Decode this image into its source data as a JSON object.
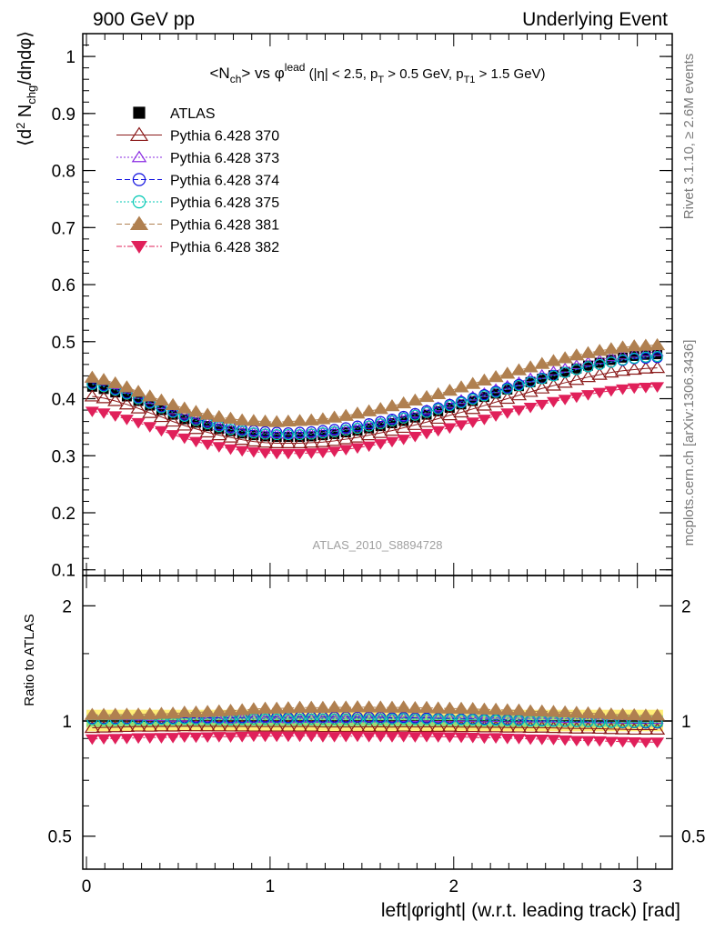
{
  "header": {
    "left": "900 GeV pp",
    "right": "Underlying Event"
  },
  "side_labels": {
    "rivet": "Rivet 3.1.10, ≥ 2.6M events",
    "mcplots": "mcplots.cern.ch [arXiv:1306.3436]"
  },
  "watermark": "ATLAS_2010_S8894728",
  "colors": {
    "data": "#000000",
    "s370": "#8b1a1a",
    "s373": "#8a2be2",
    "s374": "#1010e0",
    "s375": "#00c8b4",
    "s381": "#b08050",
    "s382": "#e0205a",
    "band_yellow": "#ffee77",
    "band_green": "#99dd77"
  },
  "chart_data": [
    {
      "type": "scatter",
      "title": "<N_ch> vs φ^lead (|η| < 2.5, p_T > 0.5 GeV, p_T1 > 1.5 GeV)",
      "ylabel": "⟨d² N_chg/dηdφ⟩",
      "xlim": [
        -0.02,
        3.19
      ],
      "ylim": [
        0.09,
        1.04
      ],
      "grid": false,
      "legend_position": "top-left",
      "x_ticks": [
        0,
        1,
        2,
        3
      ],
      "y_ticks": [
        0.1,
        0.2,
        0.3,
        0.4,
        0.5,
        0.6,
        0.7,
        0.8,
        0.9,
        1
      ],
      "x_start": 0.0314,
      "x_step": 0.0628,
      "n_points": 50,
      "series": [
        {
          "name": "ATLAS",
          "marker": "filled-square",
          "values": [
            0.421,
            0.417,
            0.411,
            0.404,
            0.396,
            0.388,
            0.38,
            0.372,
            0.364,
            0.358,
            0.352,
            0.347,
            0.343,
            0.339,
            0.336,
            0.334,
            0.333,
            0.333,
            0.333,
            0.334,
            0.336,
            0.338,
            0.341,
            0.344,
            0.348,
            0.352,
            0.357,
            0.361,
            0.367,
            0.372,
            0.378,
            0.384,
            0.39,
            0.396,
            0.403,
            0.409,
            0.416,
            0.422,
            0.429,
            0.435,
            0.441,
            0.447,
            0.453,
            0.458,
            0.463,
            0.468,
            0.472,
            0.475,
            0.477,
            0.478
          ]
        },
        {
          "name": "Pythia 6.428 370",
          "marker": "open-triangle-up",
          "line": "solid",
          "values": [
            0.404,
            0.401,
            0.396,
            0.39,
            0.383,
            0.375,
            0.368,
            0.36,
            0.353,
            0.347,
            0.341,
            0.336,
            0.332,
            0.328,
            0.325,
            0.323,
            0.322,
            0.322,
            0.322,
            0.323,
            0.324,
            0.326,
            0.329,
            0.332,
            0.336,
            0.34,
            0.344,
            0.349,
            0.354,
            0.359,
            0.365,
            0.371,
            0.376,
            0.382,
            0.388,
            0.394,
            0.4,
            0.406,
            0.412,
            0.418,
            0.423,
            0.428,
            0.433,
            0.438,
            0.442,
            0.446,
            0.449,
            0.451,
            0.453,
            0.454
          ]
        },
        {
          "name": "Pythia 6.428 373",
          "marker": "open-triangle-up-small",
          "line": "dotted",
          "values": [
            0.435,
            0.431,
            0.424,
            0.416,
            0.407,
            0.398,
            0.389,
            0.38,
            0.372,
            0.364,
            0.358,
            0.352,
            0.347,
            0.344,
            0.341,
            0.339,
            0.338,
            0.337,
            0.338,
            0.339,
            0.341,
            0.343,
            0.346,
            0.35,
            0.354,
            0.358,
            0.363,
            0.368,
            0.374,
            0.38,
            0.385,
            0.391,
            0.398,
            0.404,
            0.41,
            0.417,
            0.423,
            0.429,
            0.436,
            0.442,
            0.448,
            0.453,
            0.459,
            0.464,
            0.468,
            0.473,
            0.476,
            0.479,
            0.481,
            0.482
          ]
        },
        {
          "name": "Pythia 6.428 374",
          "marker": "open-circle",
          "line": "dashed",
          "values": [
            0.427,
            0.423,
            0.417,
            0.41,
            0.402,
            0.394,
            0.386,
            0.378,
            0.371,
            0.365,
            0.359,
            0.354,
            0.35,
            0.346,
            0.344,
            0.342,
            0.341,
            0.34,
            0.341,
            0.342,
            0.344,
            0.346,
            0.349,
            0.352,
            0.356,
            0.36,
            0.364,
            0.369,
            0.374,
            0.379,
            0.384,
            0.39,
            0.395,
            0.401,
            0.407,
            0.413,
            0.419,
            0.425,
            0.43,
            0.436,
            0.441,
            0.446,
            0.451,
            0.456,
            0.46,
            0.464,
            0.467,
            0.47,
            0.471,
            0.472
          ]
        },
        {
          "name": "Pythia 6.428 375",
          "marker": "open-circle",
          "line": "dotted",
          "values": [
            0.425,
            0.421,
            0.415,
            0.408,
            0.4,
            0.392,
            0.384,
            0.376,
            0.369,
            0.362,
            0.356,
            0.351,
            0.346,
            0.343,
            0.34,
            0.338,
            0.337,
            0.337,
            0.337,
            0.338,
            0.34,
            0.342,
            0.345,
            0.348,
            0.352,
            0.356,
            0.361,
            0.366,
            0.371,
            0.376,
            0.382,
            0.388,
            0.393,
            0.399,
            0.405,
            0.411,
            0.417,
            0.423,
            0.429,
            0.435,
            0.44,
            0.446,
            0.451,
            0.456,
            0.46,
            0.464,
            0.468,
            0.471,
            0.473,
            0.474
          ]
        },
        {
          "name": "Pythia 6.428 381",
          "marker": "filled-triangle-up",
          "line": "dashed",
          "values": [
            0.437,
            0.433,
            0.427,
            0.42,
            0.412,
            0.404,
            0.397,
            0.389,
            0.383,
            0.377,
            0.372,
            0.368,
            0.365,
            0.362,
            0.361,
            0.36,
            0.359,
            0.36,
            0.361,
            0.362,
            0.364,
            0.367,
            0.37,
            0.374,
            0.378,
            0.382,
            0.387,
            0.392,
            0.397,
            0.403,
            0.408,
            0.414,
            0.42,
            0.426,
            0.432,
            0.438,
            0.444,
            0.45,
            0.455,
            0.461,
            0.466,
            0.471,
            0.476,
            0.48,
            0.484,
            0.487,
            0.49,
            0.492,
            0.493,
            0.494
          ]
        },
        {
          "name": "Pythia 6.428 382",
          "marker": "filled-triangle-down",
          "line": "dashdot",
          "values": [
            0.378,
            0.375,
            0.37,
            0.364,
            0.358,
            0.351,
            0.344,
            0.337,
            0.331,
            0.325,
            0.32,
            0.316,
            0.312,
            0.309,
            0.307,
            0.305,
            0.304,
            0.304,
            0.304,
            0.305,
            0.306,
            0.308,
            0.311,
            0.314,
            0.317,
            0.321,
            0.325,
            0.329,
            0.334,
            0.339,
            0.344,
            0.349,
            0.354,
            0.359,
            0.364,
            0.37,
            0.375,
            0.38,
            0.385,
            0.39,
            0.395,
            0.399,
            0.403,
            0.407,
            0.411,
            0.414,
            0.417,
            0.419,
            0.42,
            0.421
          ]
        }
      ]
    },
    {
      "type": "scatter",
      "ylabel": "Ratio to ATLAS",
      "xlabel": "left|φright| (w.r.t. leading track) [rad]",
      "xlim": [
        -0.02,
        3.19
      ],
      "ylim": [
        0.41,
        2.4
      ],
      "log_y": true,
      "y_ticks": [
        0.5,
        1,
        2
      ],
      "x_ticks": [
        0,
        1,
        2,
        3
      ],
      "reference_line": 1,
      "band_yellow": [
        0.94,
        1.07
      ],
      "band_green": [
        0.965,
        1.035
      ]
    }
  ]
}
